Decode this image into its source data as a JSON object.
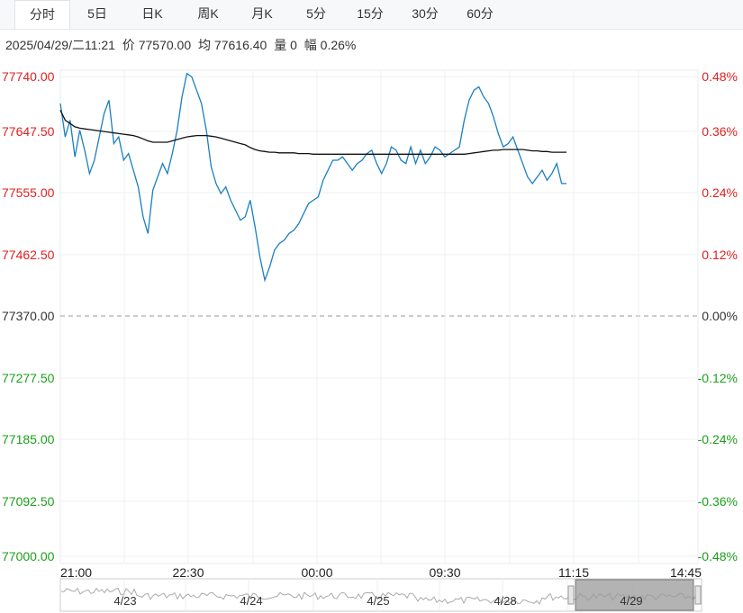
{
  "tabs": [
    "分时",
    "5日",
    "日K",
    "周K",
    "月K",
    "5分",
    "15分",
    "30分",
    "60分"
  ],
  "active_tab": "分时",
  "info": {
    "datetime": "2025/04/29/二11:21",
    "price": "价 77570.00",
    "avg": "均 77616.40",
    "volume": "量 0",
    "change": "幅 0.26%"
  },
  "colors": {
    "up": "#e02020",
    "down": "#1aa01a",
    "base": "#333333",
    "price_line": "#1a7fc1",
    "avg_line": "#111111"
  },
  "chart_data": {
    "type": "line",
    "title": "",
    "x_ticks": [
      "21:00",
      "22:30",
      "00:00",
      "09:30",
      "11:15",
      "14:45"
    ],
    "y_left_ticks": [
      "77740.00",
      "77647.50",
      "77555.00",
      "77462.50",
      "77370.00",
      "77277.50",
      "77185.00",
      "77092.50",
      "77000.00"
    ],
    "y_right_ticks": [
      "0.48%",
      "0.36%",
      "0.24%",
      "0.12%",
      "0.00%",
      "-0.12%",
      "-0.24%",
      "-0.36%",
      "-0.48%"
    ],
    "ylim": [
      77000,
      77740
    ],
    "prev_close": 77370.0,
    "series": [
      {
        "role": "price",
        "values": [
          77690,
          77640,
          77665,
          77610,
          77650,
          77620,
          77585,
          77605,
          77640,
          77675,
          77695,
          77630,
          77640,
          77605,
          77615,
          77590,
          77565,
          77520,
          77495,
          77560,
          77580,
          77600,
          77585,
          77615,
          77650,
          77700,
          77735,
          77730,
          77710,
          77690,
          77650,
          77595,
          77570,
          77555,
          77565,
          77545,
          77530,
          77515,
          77520,
          77545,
          77505,
          77460,
          77425,
          77445,
          77470,
          77480,
          77485,
          77495,
          77500,
          77510,
          77525,
          77540,
          77545,
          77550,
          77575,
          77590,
          77605,
          77605,
          77610,
          77600,
          77590,
          77600,
          77605,
          77615,
          77620,
          77600,
          77585,
          77600,
          77625,
          77620,
          77605,
          77600,
          77625,
          77600,
          77620,
          77600,
          77610,
          77625,
          77620,
          77610,
          77615,
          77620,
          77625,
          77665,
          77695,
          77710,
          77715,
          77700,
          77690,
          77670,
          77645,
          77625,
          77630,
          77640,
          77620,
          77600,
          77580,
          77570,
          77580,
          77590,
          77575,
          77585,
          77600,
          77570,
          77570
        ]
      },
      {
        "role": "average",
        "values": [
          77680,
          77665,
          77660,
          77655,
          77653,
          77652,
          77651,
          77650,
          77649,
          77648,
          77647,
          77646,
          77645,
          77644,
          77643,
          77642,
          77640,
          77637,
          77634,
          77632,
          77632,
          77632,
          77632,
          77634,
          77636,
          77638,
          77640,
          77641,
          77642,
          77642,
          77642,
          77641,
          77640,
          77638,
          77636,
          77634,
          77632,
          77630,
          77628,
          77624,
          77621,
          77619,
          77618,
          77617,
          77617,
          77616,
          77616,
          77616,
          77616,
          77615,
          77615,
          77615,
          77614,
          77614,
          77614,
          77614,
          77614,
          77614,
          77614,
          77614,
          77614,
          77614,
          77614,
          77614,
          77614,
          77614,
          77614,
          77614,
          77614,
          77614,
          77614,
          77614,
          77614,
          77614,
          77614,
          77614,
          77614,
          77614,
          77614,
          77614,
          77614,
          77614,
          77614,
          77614,
          77615,
          77616,
          77617,
          77618,
          77619,
          77620,
          77620,
          77621,
          77621,
          77621,
          77621,
          77621,
          77620,
          77619,
          77619,
          77618,
          77618,
          77617,
          77617,
          77617,
          77617
        ]
      }
    ],
    "overview_dates": [
      "4/23",
      "4/24",
      "4/25",
      "4/28",
      "4/29"
    ]
  }
}
